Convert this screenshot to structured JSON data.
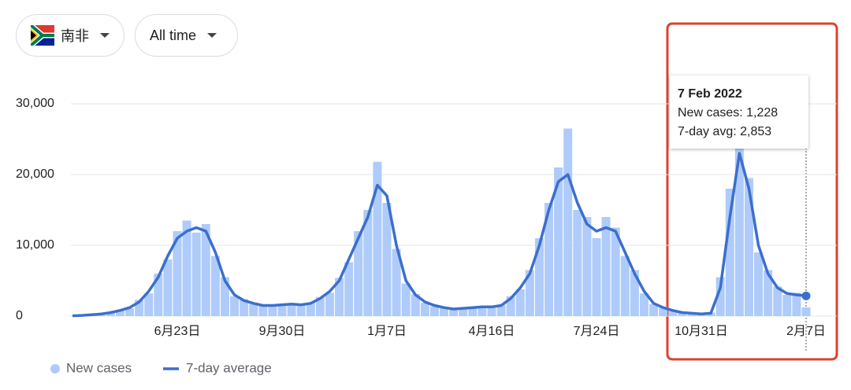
{
  "filters": [
    {
      "label": "南非"
    },
    {
      "label": "All time"
    }
  ],
  "chart_data": {
    "type": "bar_line",
    "categories": [
      null,
      null,
      null,
      null,
      null,
      null,
      null,
      null,
      null,
      null,
      null,
      "6月23日",
      null,
      null,
      null,
      null,
      null,
      null,
      null,
      null,
      null,
      null,
      "9月30日",
      null,
      null,
      null,
      null,
      null,
      null,
      null,
      null,
      null,
      null,
      "1月7日",
      null,
      null,
      null,
      null,
      null,
      null,
      null,
      null,
      null,
      null,
      "4月16日",
      null,
      null,
      null,
      null,
      null,
      null,
      null,
      null,
      null,
      null,
      "7月24日",
      null,
      null,
      null,
      null,
      null,
      null,
      null,
      null,
      null,
      null,
      "10月31日",
      null,
      null,
      null,
      null,
      null,
      null,
      null,
      null,
      null,
      null,
      "2月7日"
    ],
    "series": [
      {
        "name": "New cases",
        "color": "#aecbfa",
        "values": [
          40,
          120,
          180,
          350,
          450,
          900,
          1100,
          2300,
          3200,
          6000,
          8000,
          12000,
          13500,
          11800,
          13000,
          8500,
          5500,
          2800,
          2400,
          1700,
          1600,
          1400,
          1700,
          1800,
          1500,
          1900,
          2700,
          3300,
          5400,
          7600,
          12000,
          15000,
          21800,
          16000,
          9500,
          4600,
          3100,
          1900,
          1400,
          1300,
          900,
          1200,
          1100,
          1400,
          1200,
          1600,
          2800,
          3800,
          6500,
          11000,
          16000,
          21000,
          26500,
          15000,
          14000,
          11000,
          14000,
          12500,
          8500,
          6500,
          3200,
          1700,
          1300,
          700,
          450,
          350,
          250,
          500,
          5500,
          18000,
          24000,
          19500,
          9000,
          6500,
          4200,
          3000,
          3300,
          1228
        ]
      },
      {
        "name": "7-day average",
        "color": "#3c6fcc",
        "values": [
          50,
          100,
          200,
          300,
          500,
          800,
          1200,
          2000,
          3500,
          5500,
          8500,
          11000,
          12000,
          12500,
          12000,
          9000,
          5000,
          3000,
          2200,
          1800,
          1500,
          1500,
          1600,
          1700,
          1600,
          1800,
          2500,
          3500,
          5000,
          8000,
          11000,
          14000,
          18500,
          17000,
          10000,
          5000,
          3000,
          2000,
          1500,
          1200,
          1000,
          1100,
          1200,
          1300,
          1300,
          1500,
          2500,
          4000,
          6000,
          10000,
          15000,
          19000,
          20000,
          16000,
          13000,
          12000,
          12500,
          12000,
          9000,
          6000,
          3500,
          1800,
          1200,
          800,
          500,
          400,
          300,
          400,
          4000,
          14000,
          23000,
          18000,
          10000,
          6000,
          4000,
          3200,
          3000,
          2853
        ]
      }
    ],
    "ylim": [
      0,
      30000
    ],
    "yticks": [
      0,
      {
        "value": 10000,
        "label": "10,000"
      },
      {
        "value": 20000,
        "label": "20,000"
      },
      {
        "value": 30000,
        "label": "30,000"
      }
    ],
    "grid": true
  },
  "tooltip": {
    "title": "7 Feb 2022",
    "items": [
      {
        "label": "New cases: ",
        "value": "1,228"
      },
      {
        "label": "7-day avg: ",
        "value": "2,853"
      }
    ]
  }
}
